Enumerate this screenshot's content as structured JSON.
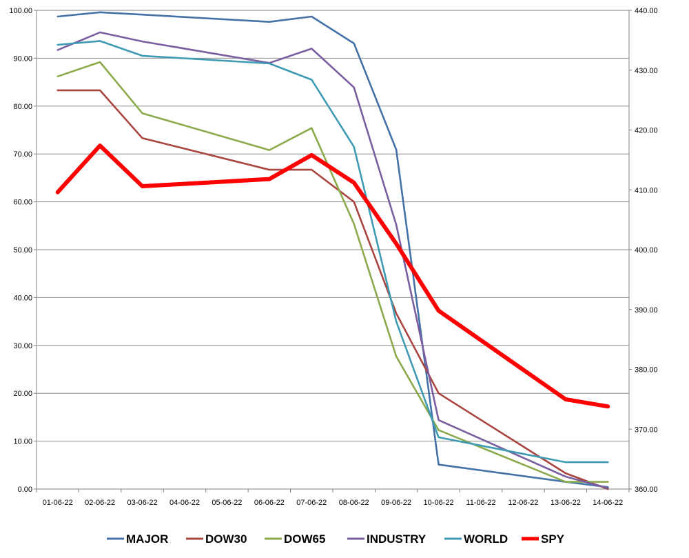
{
  "chart_data": {
    "type": "line",
    "title": "",
    "xlabel": "",
    "ylabel": "",
    "x": [
      "01-06-22",
      "02-06-22",
      "03-06-22",
      "04-06-22",
      "05-06-22",
      "06-06-22",
      "07-06-22",
      "08-06-22",
      "09-06-22",
      "10-06-22",
      "11-06-22",
      "12-06-22",
      "13-06-22",
      "14-06-22"
    ],
    "ylim": [
      0,
      100
    ],
    "y2lim": [
      360,
      440
    ],
    "y_ticks": [
      "0.00",
      "10.00",
      "20.00",
      "30.00",
      "40.00",
      "50.00",
      "60.00",
      "70.00",
      "80.00",
      "90.00",
      "100.00"
    ],
    "y2_ticks": [
      "360.00",
      "370.00",
      "380.00",
      "390.00",
      "400.00",
      "410.00",
      "420.00",
      "430.00",
      "440.00"
    ],
    "grid": true,
    "legend_position": "bottom",
    "series": [
      {
        "name": "MAJOR",
        "axis": "left",
        "color": "#4472a8",
        "points": [
          [
            0,
            98.7
          ],
          [
            1,
            99.6
          ],
          [
            2,
            99.1
          ],
          [
            5,
            97.6
          ],
          [
            6,
            98.7
          ],
          [
            7,
            93.1
          ],
          [
            8,
            70.9
          ],
          [
            9,
            5.1
          ],
          [
            12,
            1.5
          ],
          [
            13,
            0.4
          ]
        ]
      },
      {
        "name": "DOW30",
        "axis": "left",
        "color": "#a9443f",
        "points": [
          [
            0,
            83.3
          ],
          [
            1,
            83.3
          ],
          [
            2,
            73.3
          ],
          [
            5,
            66.7
          ],
          [
            6,
            66.7
          ],
          [
            7,
            60.0
          ],
          [
            8,
            36.7
          ],
          [
            9,
            20.0
          ],
          [
            12,
            3.3
          ],
          [
            13,
            0.0
          ]
        ]
      },
      {
        "name": "DOW65",
        "axis": "left",
        "color": "#8aaa4b",
        "points": [
          [
            0,
            86.2
          ],
          [
            1,
            89.2
          ],
          [
            2,
            78.5
          ],
          [
            5,
            70.8
          ],
          [
            6,
            75.4
          ],
          [
            7,
            55.4
          ],
          [
            8,
            27.7
          ],
          [
            9,
            12.3
          ],
          [
            12,
            1.5
          ],
          [
            13,
            1.5
          ]
        ]
      },
      {
        "name": "INDUSTRY",
        "axis": "left",
        "color": "#7a5ea0",
        "points": [
          [
            0,
            91.7
          ],
          [
            1,
            95.4
          ],
          [
            2,
            93.5
          ],
          [
            5,
            89.0
          ],
          [
            6,
            92.0
          ],
          [
            7,
            83.9
          ],
          [
            8,
            55.2
          ],
          [
            9,
            14.4
          ],
          [
            12,
            2.6
          ],
          [
            13,
            0.2
          ]
        ]
      },
      {
        "name": "WORLD",
        "axis": "left",
        "color": "#3f9bb3",
        "points": [
          [
            0,
            92.8
          ],
          [
            1,
            93.6
          ],
          [
            2,
            90.5
          ],
          [
            5,
            88.9
          ],
          [
            6,
            85.5
          ],
          [
            7,
            71.5
          ],
          [
            8,
            35.0
          ],
          [
            9,
            10.8
          ],
          [
            12,
            5.6
          ],
          [
            13,
            5.6
          ]
        ]
      },
      {
        "name": "SPY",
        "axis": "right",
        "color": "#ff0000",
        "points": [
          [
            0,
            409.6
          ],
          [
            1,
            417.4
          ],
          [
            2,
            410.6
          ],
          [
            5,
            411.8
          ],
          [
            6,
            415.8
          ],
          [
            7,
            411.2
          ],
          [
            8,
            401.0
          ],
          [
            9,
            389.8
          ],
          [
            12,
            375.0
          ],
          [
            13,
            373.8
          ]
        ]
      }
    ]
  }
}
